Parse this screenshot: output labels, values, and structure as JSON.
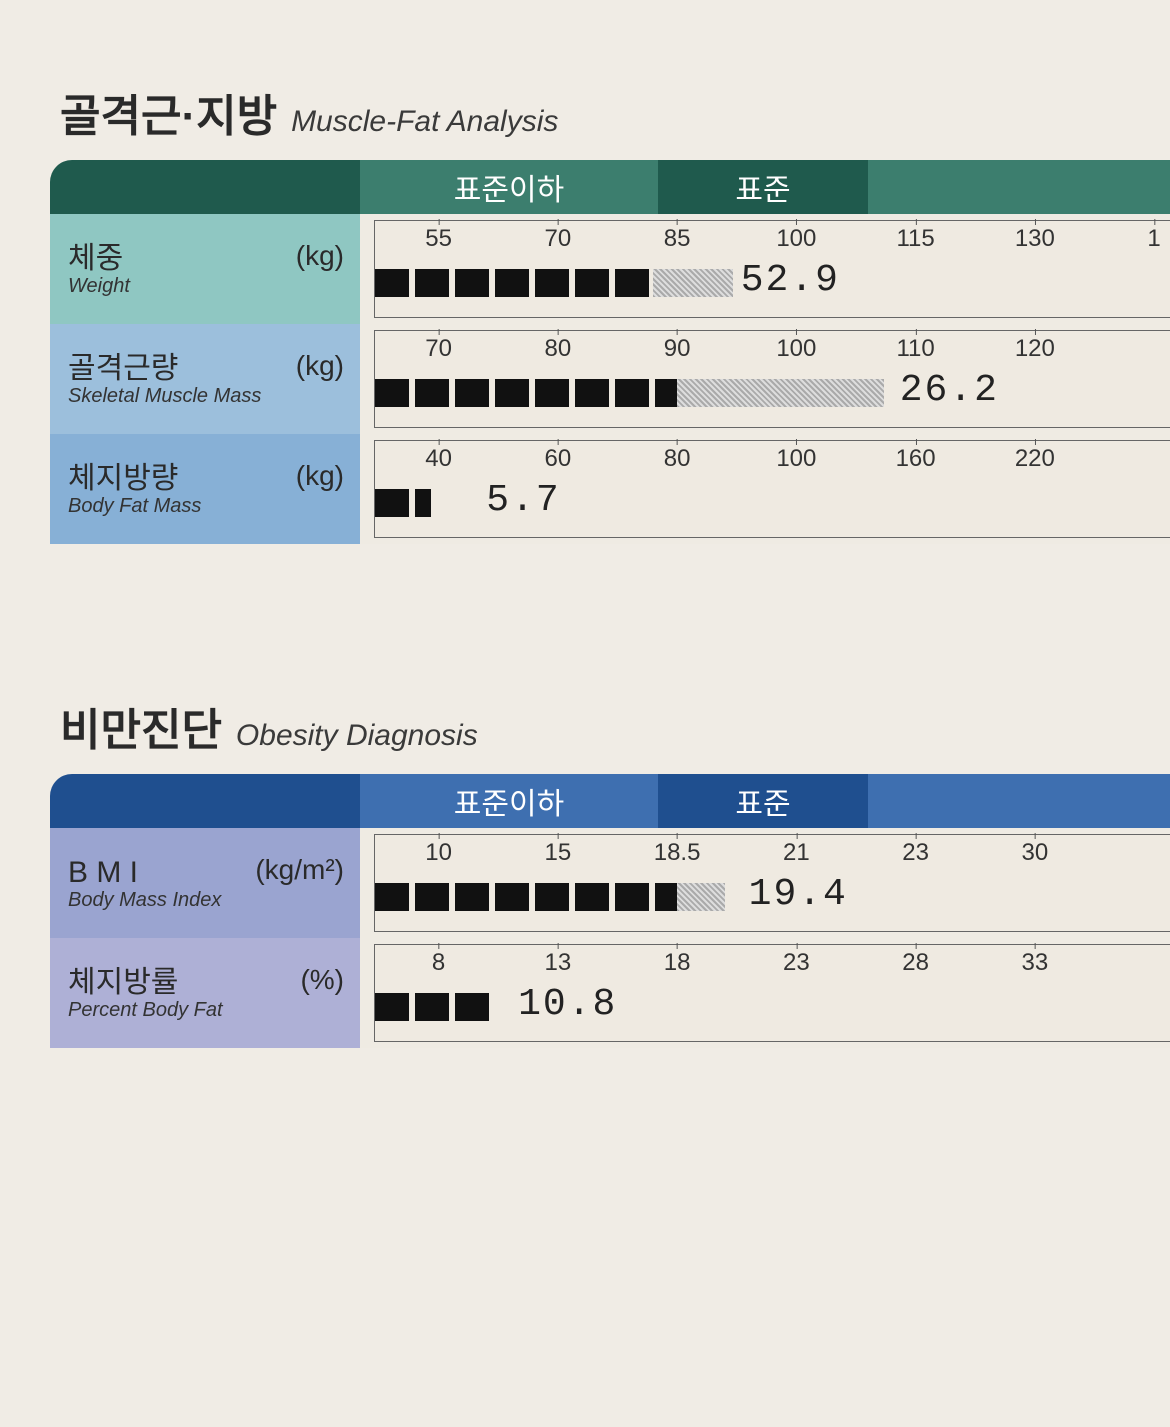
{
  "colors": {
    "paper": "#f0ece5",
    "green_dark": "#1f5a4d",
    "green_mid": "#3c7e6e",
    "teal_label": "#8fc7c2",
    "blue_label1": "#9cbfdc",
    "blue_label2": "#87b0d6",
    "blue_header_dark": "#1f4f8f",
    "blue_header_mid": "#3e6fb0",
    "lav_label1": "#9aa4d0",
    "lav_label2": "#aeb0d6"
  },
  "section1": {
    "title_kr": "골격근·지방",
    "title_en": "Muscle-Fat Analysis",
    "header": {
      "under": "표준이하",
      "normal": "표준"
    },
    "rows": [
      {
        "kr": "체중",
        "en": "Weight",
        "unit": "(kg)",
        "label_bg": "#8fc7c2",
        "ticks": [
          "55",
          "70",
          "85",
          "100",
          "115",
          "130",
          "1"
        ],
        "tick_pos": [
          8,
          23,
          38,
          53,
          68,
          83,
          98
        ],
        "bar_solid_pct": 35,
        "bar_shade_pct": 10,
        "value": "52.9",
        "value_left_pct": 46
      },
      {
        "kr": "골격근량",
        "en": "Skeletal Muscle Mass",
        "unit": "(kg)",
        "label_bg": "#9cbfdc",
        "ticks": [
          "70",
          "80",
          "90",
          "100",
          "110",
          "120"
        ],
        "tick_pos": [
          8,
          23,
          38,
          53,
          68,
          83
        ],
        "bar_solid_pct": 38,
        "bar_shade_pct": 26,
        "value": "26.2",
        "value_left_pct": 66
      },
      {
        "kr": "체지방량",
        "en": "Body Fat Mass",
        "unit": "(kg)",
        "label_bg": "#87b0d6",
        "ticks": [
          "40",
          "60",
          "80",
          "100",
          "160",
          "220"
        ],
        "tick_pos": [
          8,
          23,
          38,
          53,
          68,
          83
        ],
        "bar_solid_pct": 7,
        "bar_shade_pct": 0,
        "value": "5.7",
        "value_left_pct": 14
      }
    ]
  },
  "section2": {
    "title_kr": "비만진단",
    "title_en": "Obesity Diagnosis",
    "header": {
      "under": "표준이하",
      "normal": "표준"
    },
    "rows": [
      {
        "kr": "B M I",
        "en": "Body Mass Index",
        "unit": "(kg/m²)",
        "label_bg": "#9aa4d0",
        "ticks": [
          "10",
          "15",
          "18.5",
          "21",
          "23",
          "30"
        ],
        "tick_pos": [
          8,
          23,
          38,
          53,
          68,
          83
        ],
        "bar_solid_pct": 38,
        "bar_shade_pct": 6,
        "value": "19.4",
        "value_left_pct": 47
      },
      {
        "kr": "체지방률",
        "en": "Percent Body Fat",
        "unit": "(%)",
        "label_bg": "#aeb0d6",
        "ticks": [
          "8",
          "13",
          "18",
          "23",
          "28",
          "33"
        ],
        "tick_pos": [
          8,
          23,
          38,
          53,
          68,
          83
        ],
        "bar_solid_pct": 15,
        "bar_shade_pct": 0,
        "value": "10.8",
        "value_left_pct": 18
      }
    ]
  }
}
